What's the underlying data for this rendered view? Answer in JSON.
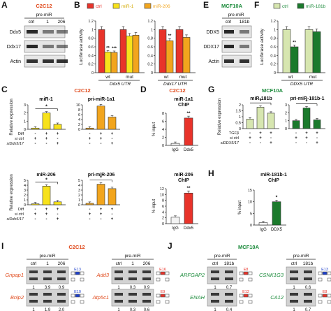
{
  "colors": {
    "red": "#e8332a",
    "yellow": "#f7e21b",
    "orange": "#f2a51d",
    "dkgreen": "#1b7a2c",
    "ltgreen": "#d7e6b0",
    "title_red": "#e04a1c",
    "title_green": "#1a8a3a",
    "blot_bg": "#e6e6e6",
    "band": "#1e1e1e"
  },
  "panels": {
    "A": {
      "letter": "A",
      "title": "C2C12",
      "header": "pre-miR",
      "lanes": [
        "ctrl",
        "1",
        "206"
      ],
      "rows": [
        "Ddx5",
        "Ddx17",
        "Actin"
      ]
    },
    "B": {
      "letter": "B",
      "legend": [
        "ctrl",
        "miR-1",
        "miR-206"
      ],
      "ylabel": "Luciferase activity",
      "yticks": [
        "0",
        "0.2",
        "0.4",
        "0.6",
        "0.8",
        "1",
        "1.2"
      ],
      "groups": [
        "wt",
        "mut",
        "wt",
        "mut"
      ],
      "utr": [
        "Ddx5 UTR",
        "Ddx17 UTR"
      ],
      "sig": [
        "**",
        "***",
        "**"
      ]
    },
    "C": {
      "letter": "C",
      "title": "C2C12",
      "ylabel": "Relative expression",
      "titles": [
        "miR-1",
        "pri-miR-1a1",
        "miR-206",
        "pri-miR-206"
      ],
      "row_labels": [
        "Diff",
        "si ctrl",
        "siDdx5/17"
      ],
      "signs": [
        [
          "-",
          "+",
          "+"
        ],
        [
          "+",
          "+",
          "-"
        ],
        [
          "-",
          "-",
          "+"
        ]
      ],
      "sig": [
        "*",
        "*",
        "*"
      ],
      "yticks_a": [
        "0",
        "1",
        "2",
        "3"
      ],
      "yticks_b": [
        "0",
        "2",
        "4",
        "6",
        "8",
        "10"
      ],
      "yticks_c": [
        "0",
        "1",
        "2",
        "3",
        "4",
        "5"
      ],
      "yticks_d": [
        "0",
        "1",
        "2",
        "3",
        "4",
        "5"
      ]
    },
    "D": {
      "letter": "D",
      "title": "C2C12",
      "titles": [
        "miR-1a1 ChIP",
        "miR-206 ChIP"
      ],
      "ylabel": "% input",
      "cats": [
        "IgG",
        "Ddx5"
      ],
      "sig": [
        "**",
        "**"
      ],
      "yticks_a": [
        "0",
        "2",
        "4",
        "6",
        "8"
      ],
      "yticks_b": [
        "0",
        "2",
        "4",
        "6",
        "8",
        "10",
        "12"
      ]
    },
    "E": {
      "letter": "E",
      "title": "MCF10A",
      "header": "pre-miR",
      "lanes": [
        "ctrl",
        "181b"
      ],
      "rows": [
        "DDX5",
        "DDX17",
        "Actin"
      ]
    },
    "F": {
      "letter": "F",
      "legend": [
        "ctrl",
        "miR-181b"
      ],
      "ylabel": "Luciferase activity",
      "yticks": [
        "0",
        "0.2",
        "0.4",
        "0.6",
        "0.8",
        "1",
        "1.2"
      ],
      "groups": [
        "wt",
        "mut"
      ],
      "utr": "DDX5 UTR",
      "sig": "**"
    },
    "G": {
      "letter": "G",
      "title": "MCF10A",
      "ylabel": "Relative expression",
      "titles": [
        "miR-181b",
        "pri-miR-181b-1"
      ],
      "row_labels": [
        "TGFβ",
        "si ctrl",
        "siDDX5/17"
      ],
      "signs": [
        [
          "-",
          "+",
          "+"
        ],
        [
          "+",
          "+",
          "-"
        ],
        [
          "-",
          "-",
          "+"
        ]
      ],
      "sig": [
        "*",
        "*"
      ],
      "yticks_a": [
        "0",
        "0.5",
        "1",
        "1.5",
        "2"
      ],
      "yticks_b": [
        "0",
        "1",
        "2",
        "3"
      ]
    },
    "H": {
      "letter": "H",
      "title": "miR-181b-1 ChIP",
      "ylabel": "% input",
      "cats": [
        "IgG",
        "DDX5"
      ],
      "sig": "*",
      "yticks": [
        "0",
        "5",
        "10",
        "15"
      ]
    },
    "I": {
      "letter": "I",
      "title": "C2C12",
      "header": "pre-miR",
      "lanes": [
        "ctrl",
        "1",
        "206"
      ],
      "genes": [
        "Gripap1",
        "Bnip2",
        "Add3",
        "Atp5c1"
      ],
      "exons": [
        "E13",
        "E10",
        "E16",
        "E9"
      ],
      "ratios": [
        [
          "1",
          "3.9",
          "0.9"
        ],
        [
          "1",
          "1.9",
          "2.0"
        ],
        [
          "1",
          "0.3",
          "0.9"
        ],
        [
          "1",
          "0.3",
          "0.6"
        ]
      ]
    },
    "J": {
      "letter": "J",
      "title": "MCF10A",
      "header": "pre-miR",
      "lanes": [
        "ctrl",
        "181b"
      ],
      "genes": [
        "ARFGAP2",
        "ENAH",
        "CSNK1G3",
        "CA12"
      ],
      "exons": [
        "E8",
        "E12",
        "E13",
        "E8"
      ],
      "ratios": [
        [
          "1",
          "0.7"
        ],
        [
          "1",
          "0.4"
        ],
        [
          "1",
          "0.6"
        ],
        [
          "1",
          "0.7"
        ]
      ]
    }
  },
  "chart_data": [
    {
      "type": "bar",
      "panel": "B",
      "title": "",
      "categories": [
        "Ddx5 UTR wt",
        "Ddx5 UTR mut",
        "Ddx17 UTR wt",
        "Ddx17 UTR mut"
      ],
      "series": [
        {
          "name": "ctrl",
          "values": [
            1.0,
            1.0,
            1.0,
            1.0
          ]
        },
        {
          "name": "miR-1",
          "values": [
            0.48,
            0.85,
            null,
            null
          ]
        },
        {
          "name": "miR-206",
          "values": [
            0.47,
            0.87,
            0.74,
            0.82
          ]
        }
      ],
      "xlabel": "",
      "ylabel": "Luciferase activity",
      "ylim": [
        0,
        1.2
      ]
    },
    {
      "type": "bar",
      "panel": "C",
      "title": "miR-1",
      "categories": [
        "1",
        "2",
        "3"
      ],
      "values": [
        0.15,
        2.0,
        0.6
      ],
      "xlabel": "",
      "ylabel": "Relative expression",
      "ylim": [
        0,
        3
      ]
    },
    {
      "type": "bar",
      "panel": "C",
      "title": "pri-miR-1a1",
      "categories": [
        "1",
        "2",
        "3"
      ],
      "values": [
        0.5,
        9.5,
        5.0
      ],
      "xlabel": "",
      "ylabel": "",
      "ylim": [
        0,
        10
      ]
    },
    {
      "type": "bar",
      "panel": "C",
      "title": "miR-206",
      "categories": [
        "1",
        "2",
        "3"
      ],
      "values": [
        0.2,
        3.8,
        0.6
      ],
      "xlabel": "",
      "ylabel": "Relative expression",
      "ylim": [
        0,
        5
      ]
    },
    {
      "type": "bar",
      "panel": "C",
      "title": "pri-miR-206",
      "categories": [
        "1",
        "2",
        "3"
      ],
      "values": [
        0.3,
        4.2,
        3.3
      ],
      "xlabel": "",
      "ylabel": "",
      "ylim": [
        0,
        5
      ]
    },
    {
      "type": "bar",
      "panel": "D",
      "title": "miR-1a1 ChIP",
      "categories": [
        "IgG",
        "Ddx5"
      ],
      "values": [
        0.5,
        6.8
      ],
      "xlabel": "",
      "ylabel": "% input",
      "ylim": [
        0,
        8
      ]
    },
    {
      "type": "bar",
      "panel": "D",
      "title": "miR-206 ChIP",
      "categories": [
        "IgG",
        "Ddx5"
      ],
      "values": [
        2.2,
        10.5
      ],
      "xlabel": "",
      "ylabel": "% input",
      "ylim": [
        0,
        12
      ]
    },
    {
      "type": "bar",
      "panel": "F",
      "title": "",
      "categories": [
        "DDX5 UTR wt",
        "DDX5 UTR mut"
      ],
      "series": [
        {
          "name": "ctrl",
          "values": [
            1.0,
            1.0
          ]
        },
        {
          "name": "miR-181b",
          "values": [
            0.6,
            0.95
          ]
        }
      ],
      "xlabel": "",
      "ylabel": "Luciferase activity",
      "ylim": [
        0,
        1.2
      ]
    },
    {
      "type": "bar",
      "panel": "G",
      "title": "miR-181b",
      "categories": [
        "1",
        "2",
        "3"
      ],
      "values": [
        0.8,
        1.8,
        1.3
      ],
      "xlabel": "",
      "ylabel": "Relative expression",
      "ylim": [
        0,
        2
      ]
    },
    {
      "type": "bar",
      "panel": "G",
      "title": "pri-miR-181b-1",
      "categories": [
        "1",
        "2",
        "3"
      ],
      "values": [
        1.0,
        2.6,
        1.1
      ],
      "xlabel": "",
      "ylabel": "",
      "ylim": [
        0,
        3
      ]
    },
    {
      "type": "bar",
      "panel": "H",
      "title": "miR-181b-1 ChIP",
      "categories": [
        "IgG",
        "DDX5"
      ],
      "values": [
        1.0,
        10.0
      ],
      "xlabel": "",
      "ylabel": "% input",
      "ylim": [
        0,
        15
      ]
    }
  ]
}
